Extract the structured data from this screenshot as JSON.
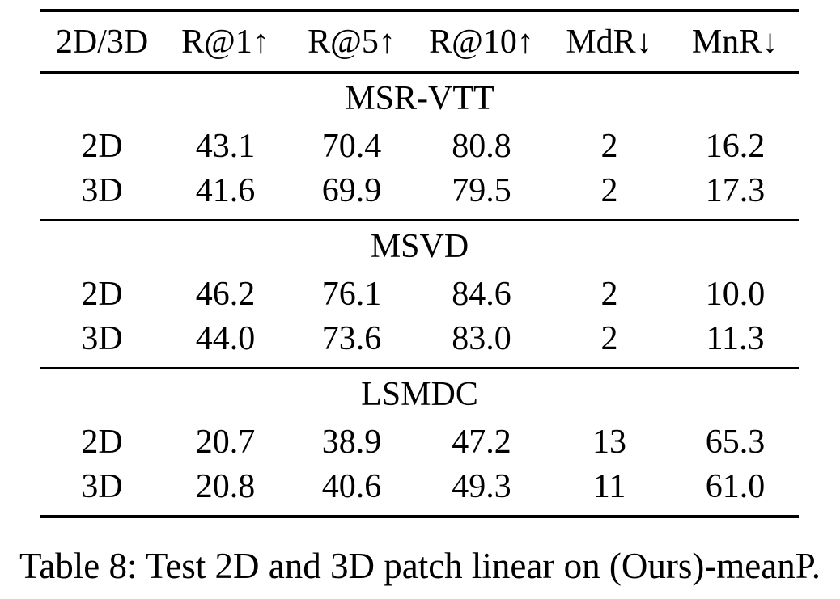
{
  "caption": "Table 8: Test 2D and 3D patch linear on (Ours)-meanP.",
  "table": {
    "columns": [
      "2D/3D",
      "R@1↑",
      "R@5↑",
      "R@10↑",
      "MdR↓",
      "MnR↓"
    ],
    "sections": [
      {
        "name": "MSR-VTT",
        "rows": [
          [
            "2D",
            "43.1",
            "70.4",
            "80.8",
            "2",
            "16.2"
          ],
          [
            "3D",
            "41.6",
            "69.9",
            "79.5",
            "2",
            "17.3"
          ]
        ]
      },
      {
        "name": "MSVD",
        "rows": [
          [
            "2D",
            "46.2",
            "76.1",
            "84.6",
            "2",
            "10.0"
          ],
          [
            "3D",
            "44.0",
            "73.6",
            "83.0",
            "2",
            "11.3"
          ]
        ]
      },
      {
        "name": "LSMDC",
        "rows": [
          [
            "2D",
            "20.7",
            "38.9",
            "47.2",
            "13",
            "65.3"
          ],
          [
            "3D",
            "20.8",
            "40.6",
            "49.3",
            "11",
            "61.0"
          ]
        ]
      }
    ]
  },
  "chart_data": {
    "type": "table",
    "title": "Table 8: Test 2D and 3D patch linear on (Ours)-meanP.",
    "columns": [
      "2D/3D",
      "R@1",
      "R@5",
      "R@10",
      "MdR",
      "MnR"
    ],
    "groups": [
      {
        "dataset": "MSR-VTT",
        "rows": [
          {
            "patch": "2D",
            "R@1": 43.1,
            "R@5": 70.4,
            "R@10": 80.8,
            "MdR": 2,
            "MnR": 16.2
          },
          {
            "patch": "3D",
            "R@1": 41.6,
            "R@5": 69.9,
            "R@10": 79.5,
            "MdR": 2,
            "MnR": 17.3
          }
        ]
      },
      {
        "dataset": "MSVD",
        "rows": [
          {
            "patch": "2D",
            "R@1": 46.2,
            "R@5": 76.1,
            "R@10": 84.6,
            "MdR": 2,
            "MnR": 10.0
          },
          {
            "patch": "3D",
            "R@1": 44.0,
            "R@5": 73.6,
            "R@10": 83.0,
            "MdR": 2,
            "MnR": 11.3
          }
        ]
      },
      {
        "dataset": "LSMDC",
        "rows": [
          {
            "patch": "2D",
            "R@1": 20.7,
            "R@5": 38.9,
            "R@10": 47.2,
            "MdR": 13,
            "MnR": 65.3
          },
          {
            "patch": "3D",
            "R@1": 20.8,
            "R@5": 40.6,
            "R@10": 49.3,
            "MdR": 11,
            "MnR": 61.0
          }
        ]
      }
    ]
  },
  "colors": {
    "text": "#000000",
    "background": "#ffffff",
    "rule": "#000000"
  }
}
